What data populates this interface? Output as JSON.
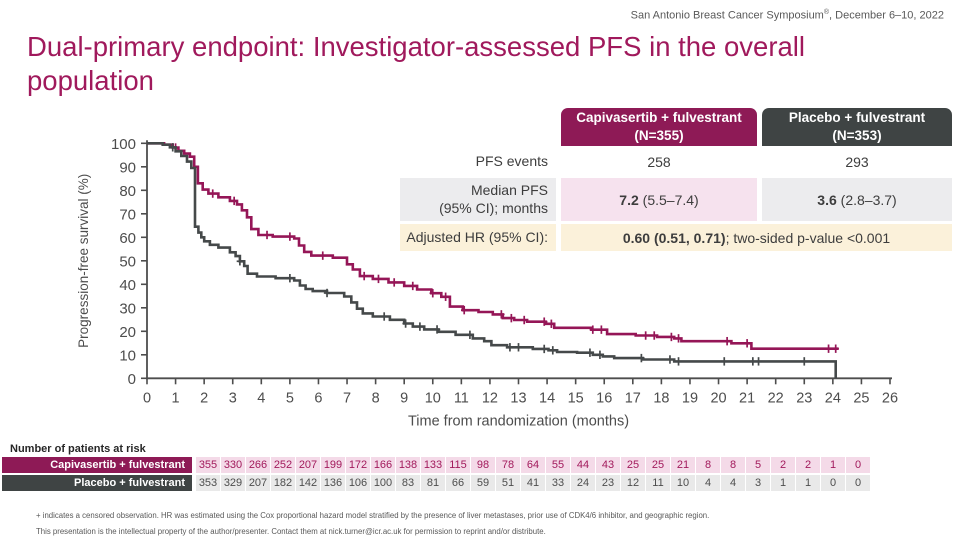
{
  "header_note": {
    "text": "San Antonio Breast Cancer Symposium",
    "sup": "®",
    "suffix": ", December 6–10, 2022"
  },
  "title": "Dual-primary endpoint: Investigator-assessed PFS in the overall population",
  "summary_table": {
    "columns": [
      {
        "label": "Capivasertib + fulvestrant (N=355)"
      },
      {
        "label": "Placebo + fulvestrant (N=353)"
      }
    ],
    "pfs_events": {
      "label": "PFS events",
      "capivasertib": "258",
      "placebo": "293"
    },
    "median": {
      "label_line1": "Median PFS",
      "label_line2": "(95% CI); months",
      "capivasertib_bold": "7.2",
      "capivasertib_rest": " (5.5–7.4)",
      "placebo_bold": "3.6",
      "placebo_rest": " (2.8–3.7)"
    },
    "hr": {
      "label": "Adjusted HR (95% CI):",
      "value_bold": "0.60 (0.51, 0.71)",
      "value_rest": "; two-sided p-value <0.001"
    }
  },
  "chart_data": {
    "type": "line",
    "subtype": "kaplan_meier_step",
    "title": "",
    "xlabel": "Time from randomization (months)",
    "ylabel": "Progression-free survival (%)",
    "xlim": [
      0,
      26
    ],
    "ylim": [
      0,
      100
    ],
    "xticks": [
      0,
      1,
      2,
      3,
      4,
      5,
      6,
      7,
      8,
      9,
      10,
      11,
      12,
      13,
      14,
      15,
      16,
      17,
      18,
      19,
      20,
      21,
      22,
      23,
      24,
      25,
      26
    ],
    "yticks": [
      0,
      10,
      20,
      30,
      40,
      50,
      60,
      70,
      80,
      90,
      100
    ],
    "grid": false,
    "legend_position": "none",
    "series": [
      {
        "name": "Capivasertib + fulvestrant",
        "color": "#951657",
        "points": [
          [
            0,
            100
          ],
          [
            0.6,
            99.4
          ],
          [
            0.9,
            98.2
          ],
          [
            1.1,
            96.8
          ],
          [
            1.3,
            95.6
          ],
          [
            1.5,
            94.3
          ],
          [
            1.65,
            90
          ],
          [
            1.78,
            83
          ],
          [
            1.95,
            80.3
          ],
          [
            2.15,
            78.6
          ],
          [
            2.5,
            77
          ],
          [
            2.9,
            75.5
          ],
          [
            3.15,
            74
          ],
          [
            3.32,
            71.5
          ],
          [
            3.5,
            68.5
          ],
          [
            3.65,
            63.5
          ],
          [
            3.9,
            61
          ],
          [
            4.4,
            60.3
          ],
          [
            5.15,
            59.5
          ],
          [
            5.32,
            56.5
          ],
          [
            5.5,
            53.8
          ],
          [
            5.75,
            52.2
          ],
          [
            6.5,
            51.3
          ],
          [
            7.0,
            48.5
          ],
          [
            7.2,
            46.3
          ],
          [
            7.45,
            43.5
          ],
          [
            7.9,
            42.3
          ],
          [
            8.45,
            40.8
          ],
          [
            9.0,
            39.3
          ],
          [
            9.45,
            37.8
          ],
          [
            9.95,
            36.2
          ],
          [
            10.3,
            34.7
          ],
          [
            10.6,
            30.5
          ],
          [
            11.05,
            29
          ],
          [
            11.6,
            28.2
          ],
          [
            12.1,
            27.2
          ],
          [
            12.45,
            25.6
          ],
          [
            12.85,
            24.8
          ],
          [
            13.3,
            24.1
          ],
          [
            13.95,
            23.2
          ],
          [
            14.25,
            21.5
          ],
          [
            15.55,
            20.7
          ],
          [
            16.1,
            18.8
          ],
          [
            17.1,
            18.2
          ],
          [
            17.85,
            17.6
          ],
          [
            18.45,
            17
          ],
          [
            18.7,
            15.8
          ],
          [
            20.45,
            14.9
          ],
          [
            21.15,
            12.6
          ],
          [
            24.2,
            12.6
          ]
        ],
        "censor_times": [
          1.0,
          2.3,
          3.05,
          4.2,
          5.0,
          6.15,
          7.6,
          8.1,
          8.65,
          9.3,
          10.0,
          10.45,
          11.1,
          12.4,
          12.75,
          13.2,
          13.9,
          14.15,
          15.6,
          15.9,
          17.45,
          17.75,
          18.35,
          18.6,
          20.3,
          21.0,
          23.85,
          24.1
        ]
      },
      {
        "name": "Placebo + fulvestrant",
        "color": "#45494A",
        "points": [
          [
            0,
            100
          ],
          [
            0.55,
            99.4
          ],
          [
            0.8,
            98.3
          ],
          [
            1.0,
            96.6
          ],
          [
            1.2,
            94.6
          ],
          [
            1.4,
            92.2
          ],
          [
            1.55,
            89.5
          ],
          [
            1.68,
            64.5
          ],
          [
            1.8,
            62
          ],
          [
            1.9,
            60
          ],
          [
            2.0,
            58.3
          ],
          [
            2.2,
            56.8
          ],
          [
            2.5,
            55.6
          ],
          [
            2.9,
            53.6
          ],
          [
            3.1,
            52
          ],
          [
            3.25,
            49.8
          ],
          [
            3.4,
            47.8
          ],
          [
            3.52,
            44.5
          ],
          [
            3.85,
            43.3
          ],
          [
            4.5,
            42.6
          ],
          [
            5.15,
            41.6
          ],
          [
            5.35,
            39.5
          ],
          [
            5.55,
            38
          ],
          [
            5.8,
            37.1
          ],
          [
            6.3,
            36.3
          ],
          [
            6.9,
            34.8
          ],
          [
            7.15,
            32.3
          ],
          [
            7.35,
            29.6
          ],
          [
            7.55,
            27.6
          ],
          [
            7.9,
            26.3
          ],
          [
            8.5,
            24.9
          ],
          [
            9.0,
            23.3
          ],
          [
            9.3,
            22
          ],
          [
            9.7,
            20.8
          ],
          [
            10.2,
            19.8
          ],
          [
            10.8,
            18.5
          ],
          [
            11.4,
            17
          ],
          [
            11.8,
            15.8
          ],
          [
            12.05,
            14.1
          ],
          [
            12.6,
            13.2
          ],
          [
            13.5,
            12.5
          ],
          [
            14.05,
            11.9
          ],
          [
            14.35,
            11.2
          ],
          [
            15.05,
            10.9
          ],
          [
            15.6,
            10
          ],
          [
            15.95,
            9.3
          ],
          [
            16.35,
            8.6
          ],
          [
            17.35,
            8
          ],
          [
            18.45,
            7.2
          ],
          [
            24.1,
            7.2
          ],
          [
            24.1,
            0
          ]
        ],
        "censor_times": [
          0.9,
          3.25,
          5.0,
          6.3,
          8.3,
          9.05,
          9.55,
          10.15,
          11.3,
          12.7,
          13.0,
          13.9,
          14.2,
          15.5,
          15.85,
          17.3,
          18.3,
          18.6,
          20.2,
          21.2,
          21.4,
          23.0
        ]
      }
    ]
  },
  "at_risk": {
    "heading": "Number of patients at risk",
    "rows": [
      {
        "label": "Capivasertib + fulvestrant",
        "values": [
          355,
          330,
          266,
          252,
          207,
          199,
          172,
          166,
          138,
          133,
          115,
          98,
          78,
          64,
          55,
          44,
          43,
          25,
          25,
          21,
          8,
          8,
          5,
          2,
          2,
          1,
          0
        ]
      },
      {
        "label": "Placebo + fulvestrant",
        "values": [
          353,
          329,
          207,
          182,
          142,
          136,
          106,
          100,
          83,
          81,
          66,
          59,
          51,
          41,
          33,
          24,
          23,
          12,
          11,
          10,
          4,
          4,
          3,
          1,
          1,
          0,
          0
        ]
      }
    ]
  },
  "footnotes": {
    "line1": "+ indicates a censored observation. HR was estimated using the Cox proportional hazard model stratified by the presence of liver metastases, prior use of CDK4/6 inhibitor, and geographic region.",
    "line2": "This presentation is the intellectual property of the author/presenter. Contact them at nick.turner@icr.ac.uk for permission to reprint and/or distribute."
  },
  "colors": {
    "brand_magenta": "#8E1A56",
    "curve_magenta": "#951657",
    "dark_gray": "#3F4444",
    "curve_gray": "#45494A",
    "pink_cell": "#F6E2EE",
    "gray_cell": "#ECECEE",
    "cream_cell": "#FBF1DA",
    "at_risk_pink": "#F4DAE8",
    "at_risk_gray": "#E9E9E9",
    "axis_text": "#4D4D4D"
  }
}
